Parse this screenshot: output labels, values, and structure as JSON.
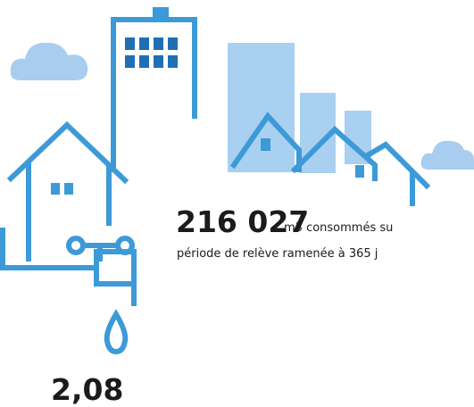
{
  "figures": [
    {
      "value": "216 027",
      "unit_text": "m3 consommés su",
      "note": "période de relève ramenée à 365 j"
    },
    {
      "value": "2,08"
    }
  ]
}
